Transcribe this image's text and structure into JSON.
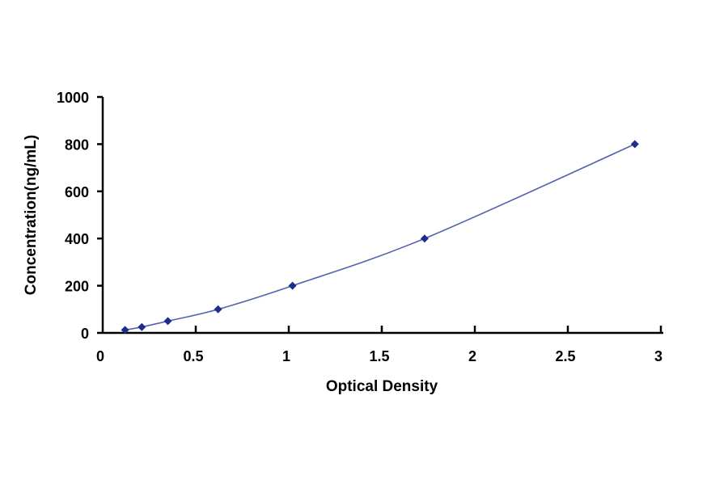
{
  "chart_data": {
    "type": "scatter",
    "title": "",
    "xlabel": "Optical Density",
    "ylabel": "Concentration(ng/mL)",
    "xlim": [
      0,
      3
    ],
    "ylim": [
      0,
      1000
    ],
    "xticks": [
      "0",
      "0.5",
      "1",
      "1.5",
      "2",
      "2.5",
      "3"
    ],
    "yticks": [
      "0",
      "200",
      "400",
      "600",
      "800",
      "1000"
    ],
    "grid": false,
    "legend": "none",
    "series": [
      {
        "x": [
          0.12,
          0.21,
          0.35,
          0.62,
          1.02,
          1.73,
          2.86
        ],
        "y": [
          12.5,
          25,
          50,
          100,
          200,
          400,
          800
        ],
        "color": "#1F2D8A",
        "marker": "diamond",
        "line": "smooth"
      }
    ]
  }
}
